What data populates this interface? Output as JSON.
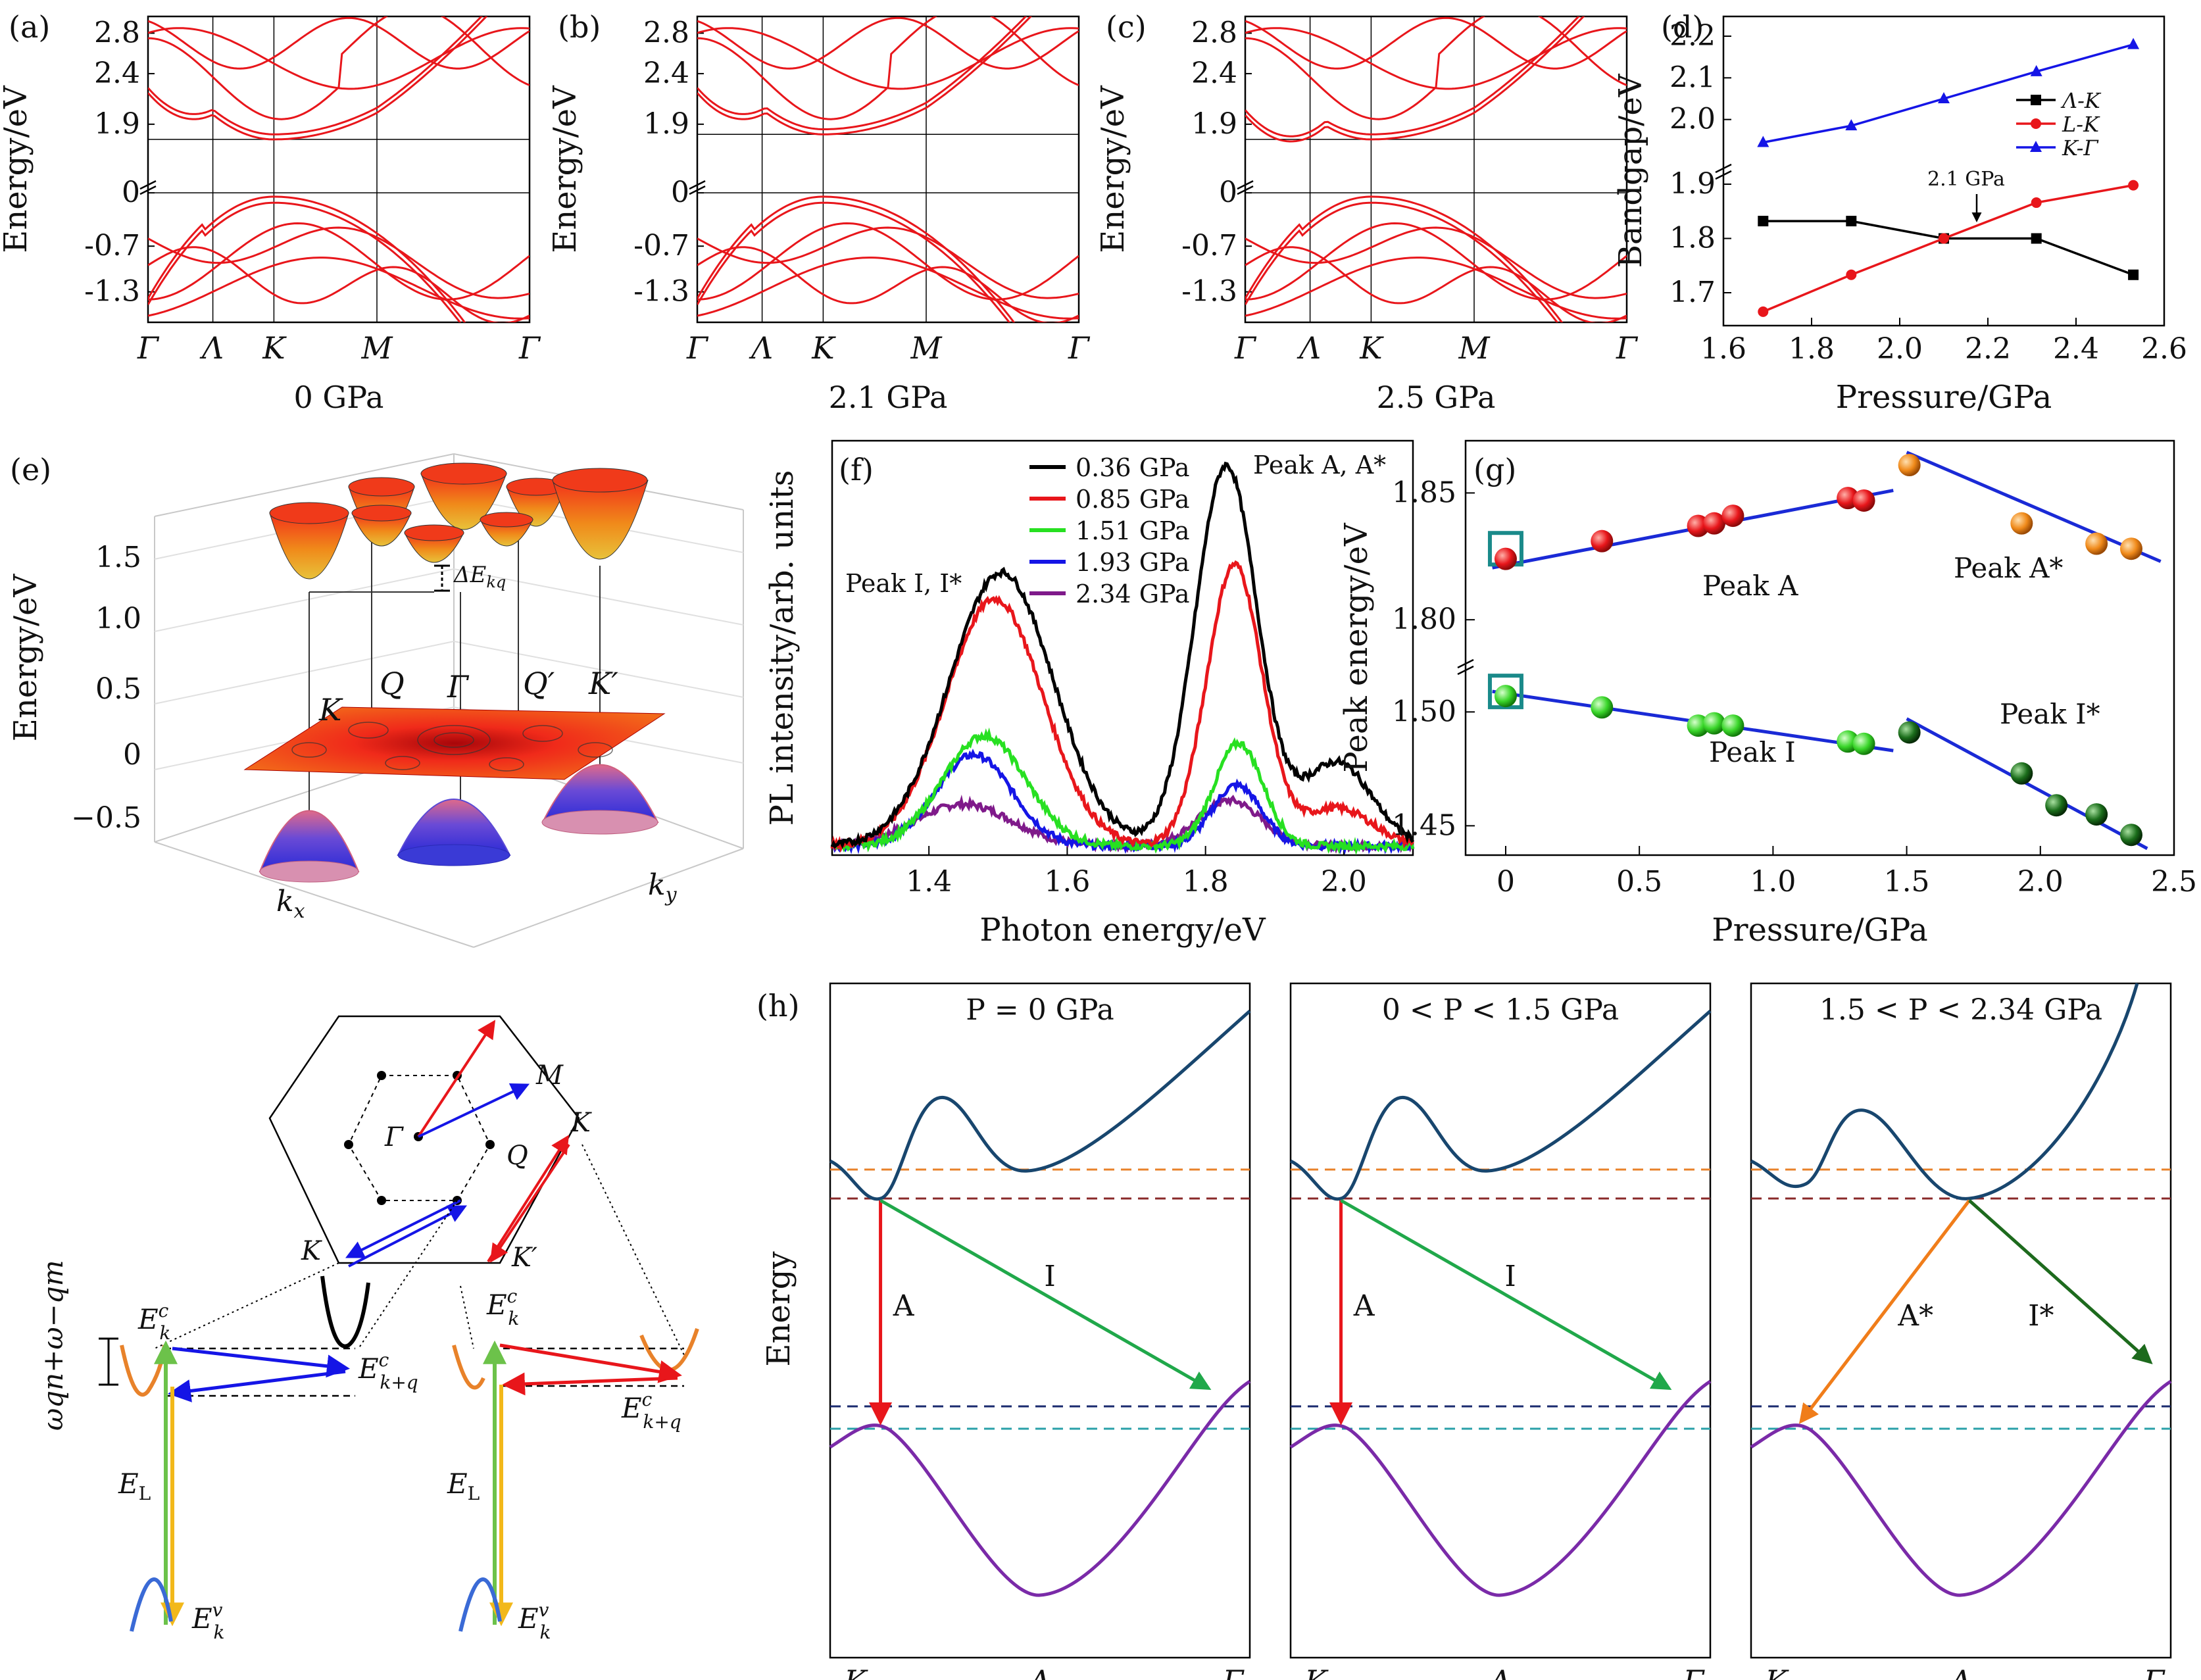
{
  "panels": {
    "a": {
      "label": "(a)",
      "pressure": "0 GPa",
      "vbm_gap": 1.75
    },
    "b": {
      "label": "(b)",
      "pressure": "2.1 GPa",
      "vbm_gap": 1.8
    },
    "c": {
      "label": "(c)",
      "pressure": "2.5 GPa",
      "vbm_gap": 1.75
    },
    "band_common": {
      "ylabel": "Energy/eV",
      "yticks": [
        "2.8",
        "2.4",
        "1.9",
        "0",
        "-0.7",
        "-1.3"
      ],
      "kpoints": [
        "Γ",
        "Λ",
        "K",
        "M",
        "Γ"
      ]
    },
    "e": {
      "label": "(e)",
      "ylabel": "Energy/eV",
      "yticks": [
        "1.5",
        "1.0",
        "0.5",
        "0",
        "−0.5"
      ],
      "points": [
        "K",
        "Q",
        "Γ",
        "Q′",
        "K′"
      ],
      "delta": "ΔE",
      "kx": "k",
      "kx_sub": "x",
      "ky": "k",
      "ky_sub": "y"
    },
    "schematic": {
      "bz_labels": {
        "gamma": "Γ",
        "m": "M",
        "k_top": "K",
        "q": "Q",
        "k_left": "K",
        "k_prime": "K′"
      },
      "omega": "ωqn+ω−qm",
      "E_L": "E",
      "E_L_sub": "L",
      "Ekc": "E",
      "Ekc_sub": "k",
      "Ekc_sup": "c",
      "Ekqc_sub": "k+q",
      "Ekv_sup": "v"
    },
    "h": {
      "label": "(h)",
      "ylabel": "Energy",
      "subpanels": [
        {
          "title": "P = 0 GPa",
          "transitions": [
            "A",
            "I"
          ]
        },
        {
          "title": "0 < P < 1.5 GPa",
          "transitions": [
            "A",
            "I"
          ]
        },
        {
          "title": "1.5 < P < 2.34 GPa",
          "transitions": [
            "A*",
            "I*"
          ]
        }
      ],
      "xticks": [
        "K",
        "Λ",
        "Γ"
      ]
    }
  },
  "colors": {
    "band_red": "#e8161b",
    "black": "#000000",
    "blue": "#1515e6",
    "green": "#27e021",
    "purple": "#7f1a8a",
    "navy": "#18466e",
    "violet": "#7a2aa8",
    "orange": "#f07d1a",
    "darkgreen": "#1d6a1d",
    "arrow_green": "#20a84a",
    "teal": "#1a8a8a",
    "dash_orange": "#e8822a",
    "dash_maroon": "#8a2a2a",
    "dash_navy": "#1a2a6e",
    "dash_teal": "#2aa0a8"
  },
  "chart_data": [
    {
      "id": "d",
      "label": "(d)",
      "type": "line",
      "xlabel": "Pressure/GPa",
      "ylabel": "Bandgap/eV",
      "xlim": [
        1.6,
        2.6
      ],
      "xticks": [
        1.6,
        1.8,
        2.0,
        2.2,
        2.4,
        2.6
      ],
      "xtick_labels": [
        "1.6",
        "1.8",
        "2.0",
        "2.2",
        "2.4",
        "2.6"
      ],
      "ylim_upper": [
        1.92,
        2.22
      ],
      "ylim_lower": [
        1.65,
        1.92
      ],
      "yticks_labels": [
        "2.2",
        "2.1",
        "2.0",
        "1.9",
        "1.8",
        "1.7"
      ],
      "annotation": "2.1 GPa",
      "legend_position": "top-right",
      "series": [
        {
          "name": "Λ-K",
          "color": "#000000",
          "marker": "square",
          "x": [
            1.69,
            1.89,
            2.1,
            2.31,
            2.53
          ],
          "y": [
            1.832,
            1.832,
            1.8,
            1.8,
            1.733
          ]
        },
        {
          "name": "L-K",
          "color": "#e8161b",
          "marker": "circle",
          "x": [
            1.69,
            1.89,
            2.1,
            2.31,
            2.53
          ],
          "y": [
            1.665,
            1.733,
            1.8,
            1.866,
            1.898
          ]
        },
        {
          "name": "K-Γ",
          "color": "#1515e6",
          "marker": "triangle",
          "x": [
            1.69,
            1.89,
            2.1,
            2.31,
            2.53
          ],
          "y": [
            1.945,
            1.985,
            2.05,
            2.115,
            2.18
          ]
        }
      ]
    },
    {
      "id": "f",
      "label": "(f)",
      "type": "line",
      "xlabel": "Photon energy/eV",
      "ylabel": "PL intensity/arb. units",
      "xlim": [
        1.26,
        2.1
      ],
      "xticks": [
        1.4,
        1.6,
        1.8,
        2.0
      ],
      "xtick_labels": [
        "1.4",
        "1.6",
        "1.8",
        "2.0"
      ],
      "annotations": [
        "Peak I, I*",
        "Peak A, A*"
      ],
      "legend_position": "top",
      "series": [
        {
          "name": "0.36 GPa",
          "color": "#000000",
          "peaks": [
            [
              1.505,
              0.72,
              0.075
            ],
            [
              1.83,
              1.0,
              0.045
            ],
            [
              1.99,
              0.22,
              0.05
            ]
          ]
        },
        {
          "name": "0.85 GPa",
          "color": "#e8161b",
          "peaks": [
            [
              1.495,
              0.65,
              0.07
            ],
            [
              1.842,
              0.74,
              0.04
            ],
            [
              1.99,
              0.1,
              0.05
            ]
          ]
        },
        {
          "name": "1.51 GPa",
          "color": "#27e021",
          "peaks": [
            [
              1.48,
              0.29,
              0.06
            ],
            [
              1.848,
              0.27,
              0.035
            ]
          ]
        },
        {
          "name": "1.93 GPa",
          "color": "#1515e6",
          "peaks": [
            [
              1.465,
              0.24,
              0.055
            ],
            [
              1.845,
              0.16,
              0.035
            ]
          ]
        },
        {
          "name": "2.34 GPa",
          "color": "#7f1a8a",
          "peaks": [
            [
              1.45,
              0.11,
              0.07
            ],
            [
              1.835,
              0.12,
              0.045
            ]
          ]
        }
      ]
    },
    {
      "id": "g",
      "label": "(g)",
      "type": "scatter",
      "xlabel": "Pressure/GPa",
      "ylabel": "Peak energy/eV",
      "xlim": [
        -0.15,
        2.5
      ],
      "xticks": [
        0,
        0.5,
        1.0,
        1.5,
        2.0,
        2.5
      ],
      "xtick_labels": [
        "0",
        "0.5",
        "1.0",
        "1.5",
        "2.0",
        "2.5"
      ],
      "upper_ylim": [
        1.785,
        1.868
      ],
      "upper_yticks_labels": [
        "1.85",
        "1.80"
      ],
      "lower_ylim": [
        1.44,
        1.518
      ],
      "lower_yticks_labels": [
        "1.50",
        "1.45"
      ],
      "annotations": [
        "Peak A",
        "Peak A*",
        "Peak I",
        "Peak I*"
      ],
      "series": [
        {
          "name": "Peak A",
          "color": "#e8161b",
          "panel": "upper",
          "x": [
            0,
            0.36,
            0.72,
            0.78,
            0.85,
            1.28,
            1.34
          ],
          "y": [
            1.824,
            1.831,
            1.837,
            1.838,
            1.841,
            1.848,
            1.847
          ]
        },
        {
          "name": "Peak A*",
          "color": "#f08a1a",
          "panel": "upper",
          "x": [
            1.51,
            1.93,
            2.21,
            2.34
          ],
          "y": [
            1.861,
            1.838,
            1.83,
            1.828
          ]
        },
        {
          "name": "Peak I",
          "color": "#3ad62a",
          "panel": "lower",
          "x": [
            0,
            0.36,
            0.72,
            0.78,
            0.85,
            1.28,
            1.34
          ],
          "y": [
            1.507,
            1.502,
            1.494,
            1.495,
            1.494,
            1.487,
            1.486
          ]
        },
        {
          "name": "Peak I*",
          "color": "#1b6e1b",
          "panel": "lower",
          "x": [
            1.51,
            1.93,
            2.06,
            2.21,
            2.34
          ],
          "y": [
            1.491,
            1.473,
            1.459,
            1.455,
            1.446
          ]
        }
      ],
      "fits": [
        {
          "panel": "upper",
          "x": [
            -0.05,
            1.45
          ],
          "y": [
            1.8205,
            1.851
          ]
        },
        {
          "panel": "upper",
          "x": [
            1.5,
            2.45
          ],
          "y": [
            1.866,
            1.823
          ]
        },
        {
          "panel": "lower",
          "x": [
            -0.05,
            1.45
          ],
          "y": [
            1.509,
            1.483
          ]
        },
        {
          "panel": "lower",
          "x": [
            1.5,
            2.4
          ],
          "y": [
            1.497,
            1.44
          ]
        }
      ]
    }
  ]
}
